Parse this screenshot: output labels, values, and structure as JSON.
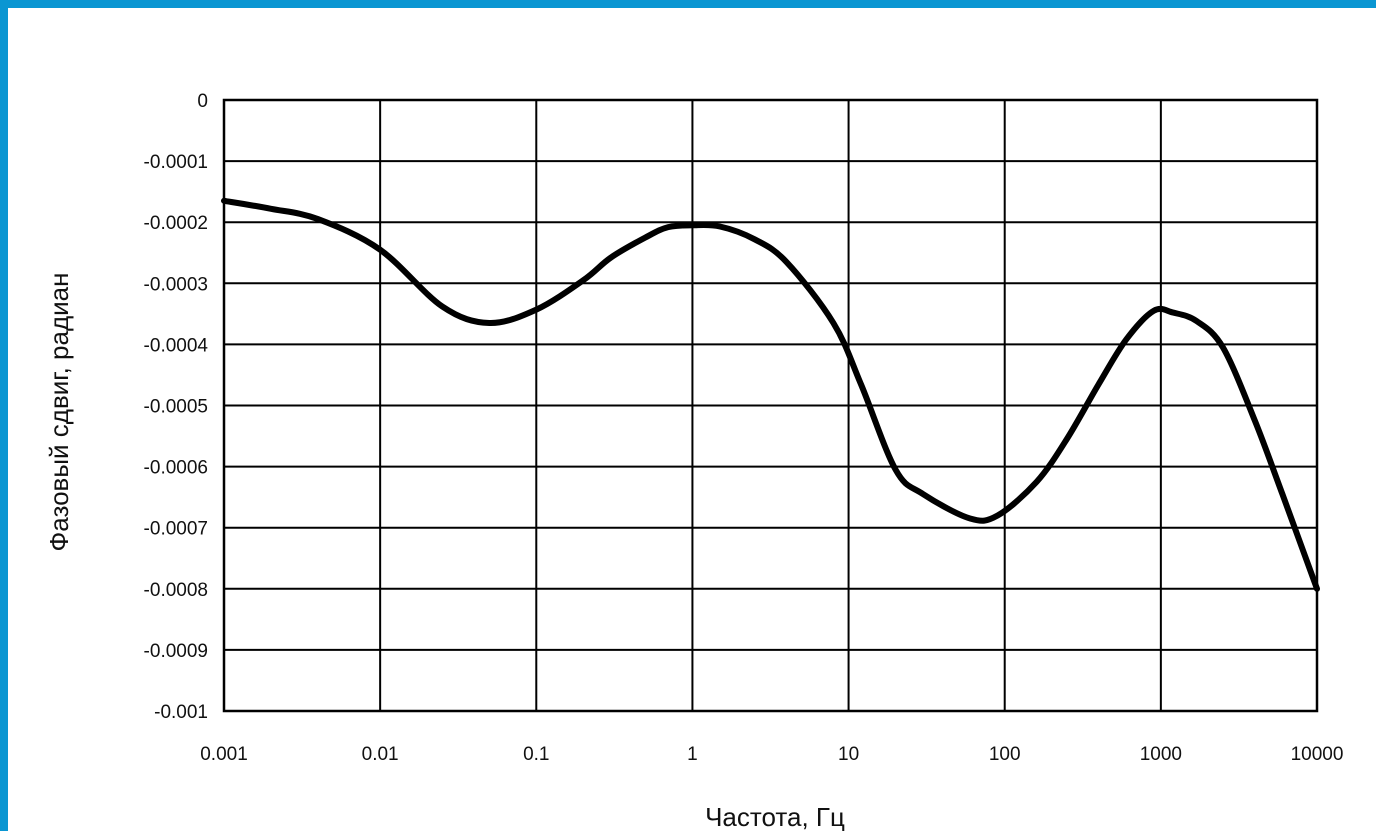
{
  "chart_data": {
    "type": "line",
    "title": "",
    "xlabel": "Частота, Гц",
    "ylabel": "Фазовый сдвиг, радиан",
    "x_scale": "log",
    "xlim": [
      0.001,
      10000
    ],
    "ylim": [
      -0.001,
      0
    ],
    "grid": true,
    "legend": "none",
    "x_tick_labels": [
      "0.001",
      "0.01",
      "0.1",
      "1",
      "10",
      "100",
      "1000",
      "10000"
    ],
    "x_tick_values": [
      0.001,
      0.01,
      0.1,
      1,
      10,
      100,
      1000,
      10000
    ],
    "y_tick_labels": [
      "0",
      "-0.0001",
      "-0.0002",
      "-0.0003",
      "-0.0004",
      "-0.0005",
      "-0.0006",
      "-0.0007",
      "-0.0008",
      "-0.0009",
      "-0.001"
    ],
    "y_tick_values": [
      0,
      -0.0001,
      -0.0002,
      -0.0003,
      -0.0004,
      -0.0005,
      -0.0006,
      -0.0007,
      -0.0008,
      -0.0009,
      -0.001
    ],
    "series": [
      {
        "color": "#000000",
        "x": [
          0.001,
          0.002,
          0.004,
          0.01,
          0.025,
          0.05,
          0.1,
          0.2,
          0.3,
          0.5,
          0.7,
          1,
          1.5,
          2.5,
          4,
          8,
          12,
          20,
          30,
          60,
          90,
          160,
          250,
          400,
          600,
          900,
          1200,
          1700,
          2500,
          4000,
          6000,
          10000
        ],
        "y": [
          -0.000165,
          -0.000178,
          -0.000195,
          -0.000245,
          -0.000338,
          -0.000365,
          -0.000343,
          -0.000295,
          -0.000258,
          -0.000225,
          -0.000208,
          -0.000205,
          -0.000207,
          -0.000228,
          -0.000265,
          -0.000365,
          -0.000465,
          -0.000605,
          -0.000645,
          -0.000685,
          -0.00068,
          -0.000625,
          -0.000555,
          -0.000465,
          -0.000392,
          -0.000345,
          -0.000348,
          -0.000362,
          -0.000405,
          -0.000525,
          -0.000645,
          -0.0008
        ]
      }
    ]
  }
}
